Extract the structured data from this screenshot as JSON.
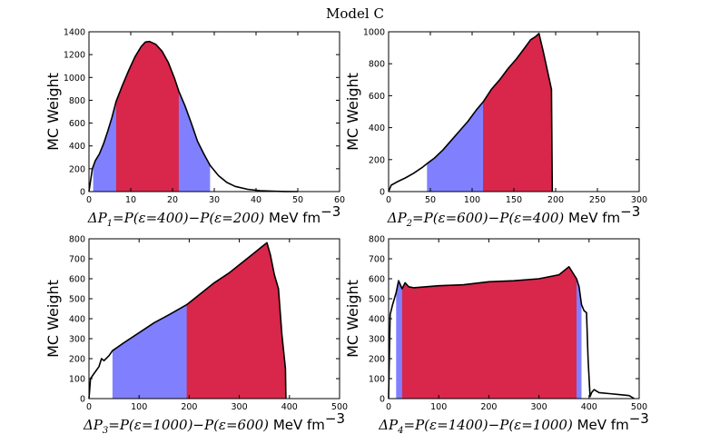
{
  "figure": {
    "suptitle": "Model C"
  },
  "colors": {
    "inner_band": "#d9264b",
    "outer_band": "#8080ff",
    "curve": "#000000",
    "axes": "#000000"
  },
  "chart_data": [
    {
      "type": "area",
      "title": "",
      "xlabel": "ΔP1 = P(ε=400)−P(ε=200) MeV fm−3",
      "xlabel_parts": {
        "var": "ΔP",
        "sub": "1",
        "expr": "=P(ε=400)−P(ε=200)",
        "unit": "MeV fm",
        "exp": "−3"
      },
      "ylabel": "MC Weight",
      "xlim": [
        0,
        60
      ],
      "ylim": [
        0,
        1400
      ],
      "xticks": [
        0,
        10,
        20,
        30,
        40,
        50,
        60
      ],
      "xtick_labels": [
        "0",
        "10",
        "20",
        "30",
        "40",
        "50",
        "60"
      ],
      "yticks": [
        0,
        200,
        400,
        600,
        800,
        1000,
        1200,
        1400
      ],
      "ytick_labels": [
        "0",
        "200",
        "400",
        "600",
        "800",
        "1000",
        "1200",
        "1400"
      ],
      "outer_band": [
        1,
        29
      ],
      "inner_band": [
        6.5,
        21.5
      ],
      "x": [
        0,
        0.8,
        1.5,
        2.5,
        3.5,
        4.5,
        5.5,
        6.5,
        8,
        9.5,
        11,
        12.5,
        13.5,
        14.5,
        16,
        17.5,
        19,
        20.5,
        21.5,
        23,
        24.5,
        26,
        27.5,
        29,
        31,
        33,
        35,
        38,
        41,
        44,
        47,
        50
      ],
      "y": [
        0,
        200,
        270,
        330,
        420,
        530,
        650,
        790,
        930,
        1060,
        1180,
        1270,
        1310,
        1315,
        1290,
        1230,
        1130,
        990,
        880,
        750,
        600,
        440,
        330,
        230,
        140,
        80,
        45,
        20,
        8,
        3,
        1,
        0
      ]
    },
    {
      "type": "area",
      "title": "",
      "xlabel": "ΔP2 = P(ε=600)−P(ε=400) MeV fm−3",
      "xlabel_parts": {
        "var": "ΔP",
        "sub": "2",
        "expr": "=P(ε=600)−P(ε=400)",
        "unit": "MeV fm",
        "exp": "−3"
      },
      "ylabel": "MC Weight",
      "xlim": [
        0,
        300
      ],
      "ylim": [
        0,
        1000
      ],
      "xticks": [
        0,
        50,
        100,
        150,
        200,
        250,
        300
      ],
      "xtick_labels": [
        "0",
        "50",
        "100",
        "150",
        "200",
        "250",
        "300"
      ],
      "yticks": [
        0,
        200,
        400,
        600,
        800,
        1000
      ],
      "ytick_labels": [
        "0",
        "200",
        "400",
        "600",
        "800",
        "1000"
      ],
      "outer_band": [
        46,
        195
      ],
      "inner_band": [
        113,
        195
      ],
      "x": [
        0,
        3,
        10,
        20,
        30,
        40,
        46,
        55,
        65,
        75,
        85,
        95,
        105,
        113,
        123,
        133,
        143,
        153,
        163,
        170,
        176,
        180,
        185,
        190,
        195,
        196
      ],
      "y": [
        0,
        40,
        60,
        85,
        115,
        150,
        175,
        210,
        260,
        320,
        380,
        440,
        510,
        560,
        640,
        700,
        770,
        830,
        900,
        950,
        970,
        990,
        880,
        760,
        640,
        0
      ]
    },
    {
      "type": "area",
      "title": "",
      "xlabel": "ΔP3 = P(ε=1000)−P(ε=600) MeV fm−3",
      "xlabel_parts": {
        "var": "ΔP",
        "sub": "3",
        "expr": "=P(ε=1000)−P(ε=600)",
        "unit": "MeV fm",
        "exp": "−3"
      },
      "ylabel": "MC Weight",
      "xlim": [
        0,
        500
      ],
      "ylim": [
        0,
        800
      ],
      "xticks": [
        0,
        100,
        200,
        300,
        400,
        500
      ],
      "xtick_labels": [
        "0",
        "100",
        "200",
        "300",
        "400",
        "500"
      ],
      "yticks": [
        0,
        100,
        200,
        300,
        400,
        500,
        600,
        700,
        800
      ],
      "ytick_labels": [
        "0",
        "100",
        "200",
        "300",
        "400",
        "500",
        "600",
        "700",
        "800"
      ],
      "outer_band": [
        47,
        392
      ],
      "inner_band": [
        195,
        392
      ],
      "x": [
        0,
        3,
        10,
        20,
        25,
        30,
        40,
        47,
        70,
        100,
        130,
        160,
        195,
        220,
        250,
        280,
        310,
        335,
        345,
        355,
        362,
        370,
        378,
        385,
        392,
        393
      ],
      "y": [
        0,
        100,
        125,
        160,
        200,
        190,
        215,
        240,
        280,
        330,
        380,
        420,
        470,
        520,
        580,
        630,
        690,
        740,
        760,
        780,
        720,
        620,
        550,
        320,
        150,
        0
      ]
    },
    {
      "type": "area",
      "title": "",
      "xlabel": "ΔP4 = P(ε=1400)−P(ε=1000) MeV fm−3",
      "xlabel_parts": {
        "var": "ΔP",
        "sub": "4",
        "expr": "=P(ε=1400)−P(ε=1000)",
        "unit": "MeV fm",
        "exp": "−3"
      },
      "ylabel": "MC Weight",
      "xlim": [
        0,
        500
      ],
      "ylim": [
        0,
        800
      ],
      "xticks": [
        0,
        100,
        200,
        300,
        400,
        500
      ],
      "xtick_labels": [
        "0",
        "100",
        "200",
        "300",
        "400",
        "500"
      ],
      "yticks": [
        0,
        100,
        200,
        300,
        400,
        500,
        600,
        700,
        800
      ],
      "ytick_labels": [
        "0",
        "100",
        "200",
        "300",
        "400",
        "500",
        "600",
        "700",
        "800"
      ],
      "outer_band": [
        15,
        385
      ],
      "inner_band": [
        27,
        375
      ],
      "x": [
        0,
        3,
        8,
        15,
        20,
        27,
        33,
        40,
        50,
        100,
        150,
        200,
        250,
        300,
        340,
        360,
        375,
        380,
        385,
        390,
        395,
        398,
        402,
        405,
        410,
        420,
        440,
        460,
        480,
        490
      ],
      "y": [
        0,
        420,
        470,
        530,
        590,
        550,
        580,
        560,
        555,
        565,
        570,
        585,
        590,
        600,
        620,
        660,
        600,
        560,
        470,
        440,
        430,
        200,
        10,
        30,
        45,
        30,
        25,
        20,
        15,
        0
      ]
    }
  ]
}
